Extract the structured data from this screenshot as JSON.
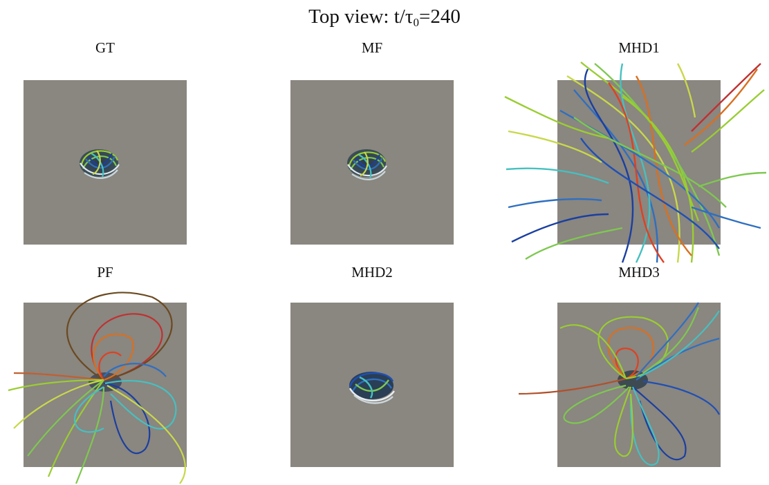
{
  "figure": {
    "title_prefix": "Top view: t/τ",
    "title_sub": "0",
    "title_suffix": "=240"
  },
  "panels": [
    {
      "label": "GT"
    },
    {
      "label": "MF"
    },
    {
      "label": "MHD1"
    },
    {
      "label": "PF"
    },
    {
      "label": "MHD2"
    },
    {
      "label": "MHD3"
    }
  ]
}
